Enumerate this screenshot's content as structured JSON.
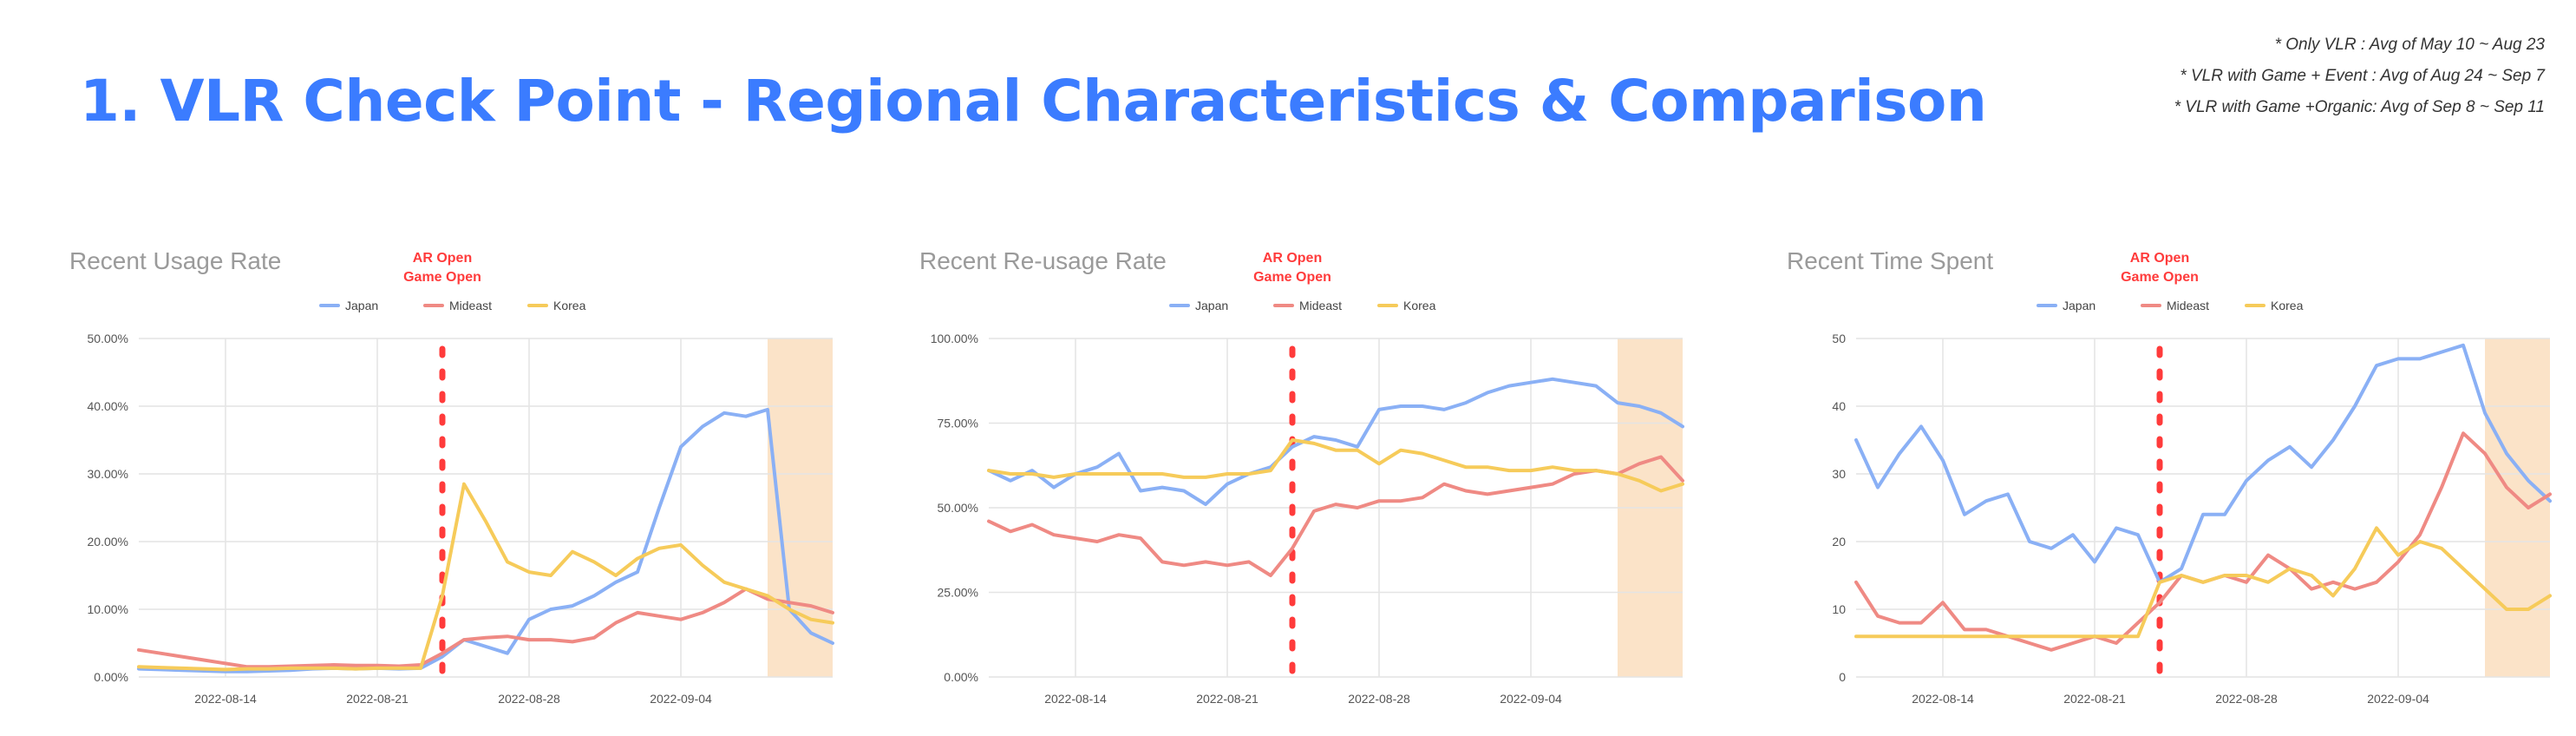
{
  "page": {
    "title": "1. VLR Check Point - Regional Characteristics & Comparison",
    "notes": [
      "* Only VLR : Avg of May 10 ~ Aug 23",
      "* VLR with Game + Event : Avg of Aug 24 ~ Sep 7",
      "* VLR with Game +Organic: Avg of Sep 8 ~ Sep 11"
    ]
  },
  "colors": {
    "japan": "#8ab0f5",
    "mideast": "#ef8a84",
    "korea": "#f6cb5a",
    "marker": "#ff3b3b",
    "highlight": "#fbe3c8"
  },
  "chart_data": [
    {
      "type": "line",
      "title": "Recent Usage Rate",
      "annotation": [
        "AR Open",
        "Game Open"
      ],
      "marker_x": "2022-08-24",
      "highlight_range": [
        "2022-09-08",
        "2022-09-11"
      ],
      "x_ticks": [
        "2022-08-14",
        "2022-08-21",
        "2022-08-28",
        "2022-09-04"
      ],
      "x_range": [
        "2022-08-10",
        "2022-09-11"
      ],
      "y_ticks": [
        "0.00%",
        "10.00%",
        "20.00%",
        "30.00%",
        "40.00%",
        "50.00%"
      ],
      "ylim": [
        0,
        50
      ],
      "x": [
        "2022-08-10",
        "2022-08-11",
        "2022-08-12",
        "2022-08-13",
        "2022-08-14",
        "2022-08-15",
        "2022-08-16",
        "2022-08-17",
        "2022-08-18",
        "2022-08-19",
        "2022-08-20",
        "2022-08-21",
        "2022-08-22",
        "2022-08-23",
        "2022-08-24",
        "2022-08-25",
        "2022-08-26",
        "2022-08-27",
        "2022-08-28",
        "2022-08-29",
        "2022-08-30",
        "2022-08-31",
        "2022-09-01",
        "2022-09-02",
        "2022-09-03",
        "2022-09-04",
        "2022-09-05",
        "2022-09-06",
        "2022-09-07",
        "2022-09-08",
        "2022-09-09",
        "2022-09-10",
        "2022-09-11"
      ],
      "series": [
        {
          "name": "Japan",
          "color": "#8ab0f5",
          "values": [
            1.2,
            1.1,
            1.0,
            0.9,
            0.8,
            0.8,
            0.9,
            1.0,
            1.2,
            1.3,
            1.2,
            1.3,
            1.2,
            1.3,
            3.0,
            5.5,
            4.5,
            3.5,
            8.5,
            10.0,
            10.5,
            12.0,
            14.0,
            15.5,
            25.0,
            34.0,
            37.0,
            39.0,
            38.5,
            39.5,
            10.0,
            6.5,
            5.0
          ]
        },
        {
          "name": "Mideast",
          "color": "#ef8a84",
          "values": [
            4.0,
            3.5,
            3.0,
            2.5,
            2.0,
            1.5,
            1.5,
            1.6,
            1.7,
            1.8,
            1.7,
            1.7,
            1.6,
            1.8,
            3.5,
            5.5,
            5.8,
            6.0,
            5.5,
            5.5,
            5.2,
            5.8,
            8.0,
            9.5,
            9.0,
            8.5,
            9.5,
            11.0,
            13.0,
            11.5,
            11.0,
            10.5,
            9.5
          ]
        },
        {
          "name": "Korea",
          "color": "#f6cb5a",
          "values": [
            1.5,
            1.4,
            1.3,
            1.2,
            1.1,
            1.2,
            1.2,
            1.3,
            1.3,
            1.3,
            1.2,
            1.3,
            1.3,
            1.3,
            12.0,
            28.5,
            23.0,
            17.0,
            15.5,
            15.0,
            18.5,
            17.0,
            15.0,
            17.5,
            19.0,
            19.5,
            16.5,
            14.0,
            13.0,
            12.0,
            10.0,
            8.5,
            8.0
          ]
        }
      ]
    },
    {
      "type": "line",
      "title": "Recent Re-usage Rate",
      "annotation": [
        "AR Open",
        "Game Open"
      ],
      "marker_x": "2022-08-24",
      "highlight_range": [
        "2022-09-08",
        "2022-09-11"
      ],
      "x_ticks": [
        "2022-08-14",
        "2022-08-21",
        "2022-08-28",
        "2022-09-04"
      ],
      "x_range": [
        "2022-08-10",
        "2022-09-11"
      ],
      "y_ticks": [
        "0.00%",
        "25.00%",
        "50.00%",
        "75.00%",
        "100.00%"
      ],
      "ylim": [
        0,
        100
      ],
      "x": [
        "2022-08-10",
        "2022-08-11",
        "2022-08-12",
        "2022-08-13",
        "2022-08-14",
        "2022-08-15",
        "2022-08-16",
        "2022-08-17",
        "2022-08-18",
        "2022-08-19",
        "2022-08-20",
        "2022-08-21",
        "2022-08-22",
        "2022-08-23",
        "2022-08-24",
        "2022-08-25",
        "2022-08-26",
        "2022-08-27",
        "2022-08-28",
        "2022-08-29",
        "2022-08-30",
        "2022-08-31",
        "2022-09-01",
        "2022-09-02",
        "2022-09-03",
        "2022-09-04",
        "2022-09-05",
        "2022-09-06",
        "2022-09-07",
        "2022-09-08",
        "2022-09-09",
        "2022-09-10",
        "2022-09-11"
      ],
      "series": [
        {
          "name": "Japan",
          "color": "#8ab0f5",
          "values": [
            61,
            58,
            61,
            56,
            60,
            62,
            66,
            55,
            56,
            55,
            51,
            57,
            60,
            62,
            68,
            71,
            70,
            68,
            79,
            80,
            80,
            79,
            81,
            84,
            86,
            87,
            88,
            87,
            86,
            81,
            80,
            78,
            74
          ]
        },
        {
          "name": "Mideast",
          "color": "#ef8a84",
          "values": [
            46,
            43,
            45,
            42,
            41,
            40,
            42,
            41,
            34,
            33,
            34,
            33,
            34,
            30,
            38,
            49,
            51,
            50,
            52,
            52,
            53,
            57,
            55,
            54,
            55,
            56,
            57,
            60,
            61,
            60,
            63,
            65,
            58
          ]
        },
        {
          "name": "Korea",
          "color": "#f6cb5a",
          "values": [
            61,
            60,
            60,
            59,
            60,
            60,
            60,
            60,
            60,
            59,
            59,
            60,
            60,
            61,
            70,
            69,
            67,
            67,
            63,
            67,
            66,
            64,
            62,
            62,
            61,
            61,
            62,
            61,
            61,
            60,
            58,
            55,
            57
          ]
        }
      ]
    },
    {
      "type": "line",
      "title": "Recent Time Spent",
      "annotation": [
        "AR Open",
        "Game Open"
      ],
      "marker_x": "2022-08-24",
      "highlight_range": [
        "2022-09-08",
        "2022-09-11"
      ],
      "x_ticks": [
        "2022-08-14",
        "2022-08-21",
        "2022-08-28",
        "2022-09-04"
      ],
      "x_range": [
        "2022-08-10",
        "2022-09-11"
      ],
      "y_ticks": [
        "0",
        "10",
        "20",
        "30",
        "40",
        "50"
      ],
      "ylim": [
        0,
        50
      ],
      "x": [
        "2022-08-10",
        "2022-08-11",
        "2022-08-12",
        "2022-08-13",
        "2022-08-14",
        "2022-08-15",
        "2022-08-16",
        "2022-08-17",
        "2022-08-18",
        "2022-08-19",
        "2022-08-20",
        "2022-08-21",
        "2022-08-22",
        "2022-08-23",
        "2022-08-24",
        "2022-08-25",
        "2022-08-26",
        "2022-08-27",
        "2022-08-28",
        "2022-08-29",
        "2022-08-30",
        "2022-08-31",
        "2022-09-01",
        "2022-09-02",
        "2022-09-03",
        "2022-09-04",
        "2022-09-05",
        "2022-09-06",
        "2022-09-07",
        "2022-09-08",
        "2022-09-09",
        "2022-09-10",
        "2022-09-11"
      ],
      "series": [
        {
          "name": "Japan",
          "color": "#8ab0f5",
          "values": [
            35,
            28,
            33,
            37,
            32,
            24,
            26,
            27,
            20,
            19,
            21,
            17,
            22,
            21,
            14,
            16,
            24,
            24,
            29,
            32,
            34,
            31,
            35,
            40,
            46,
            47,
            47,
            48,
            49,
            39,
            33,
            29,
            26
          ]
        },
        {
          "name": "Mideast",
          "color": "#ef8a84",
          "values": [
            14,
            9,
            8,
            8,
            11,
            7,
            7,
            6,
            5,
            4,
            5,
            6,
            5,
            8,
            11,
            15,
            14,
            15,
            14,
            18,
            16,
            13,
            14,
            13,
            14,
            17,
            21,
            28,
            36,
            33,
            28,
            25,
            27
          ]
        },
        {
          "name": "Korea",
          "color": "#f6cb5a",
          "values": [
            6,
            6,
            6,
            6,
            6,
            6,
            6,
            6,
            6,
            6,
            6,
            6,
            6,
            6,
            14,
            15,
            14,
            15,
            15,
            14,
            16,
            15,
            12,
            16,
            22,
            18,
            20,
            19,
            16,
            13,
            10,
            10,
            12
          ]
        }
      ]
    }
  ]
}
